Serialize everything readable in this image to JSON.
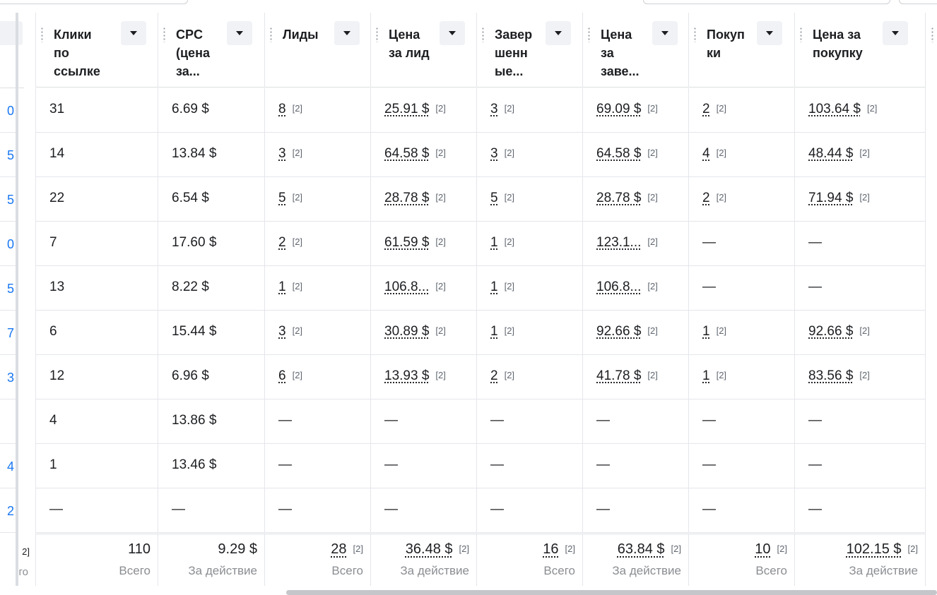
{
  "left_column": {
    "digits": [
      "0",
      "5",
      "5",
      "0",
      "5",
      "7",
      "3",
      "",
      "4",
      "2"
    ],
    "footer_note": "2]",
    "footer_label": "го"
  },
  "columns": [
    {
      "title": "Клики\nпо\nссылке"
    },
    {
      "title": "CPC\n(цена\nза..."
    },
    {
      "title": "Лиды"
    },
    {
      "title": "Цена\nза лид"
    },
    {
      "title": "Завер\nшенн\nые..."
    },
    {
      "title": "Цена\nза\nзаве..."
    },
    {
      "title": "Покуп\nки"
    },
    {
      "title": "Цена за\nпокупку"
    }
  ],
  "rows": [
    [
      {
        "v": "31"
      },
      {
        "v": "6.69 $"
      },
      {
        "v": "8",
        "n": "[2]"
      },
      {
        "v": "25.91 $",
        "n": "[2]"
      },
      {
        "v": "3",
        "n": "[2]"
      },
      {
        "v": "69.09 $",
        "n": "[2]"
      },
      {
        "v": "2",
        "n": "[2]"
      },
      {
        "v": "103.64 $",
        "n": "[2]"
      }
    ],
    [
      {
        "v": "14"
      },
      {
        "v": "13.84 $"
      },
      {
        "v": "3",
        "n": "[2]"
      },
      {
        "v": "64.58 $",
        "n": "[2]"
      },
      {
        "v": "3",
        "n": "[2]"
      },
      {
        "v": "64.58 $",
        "n": "[2]"
      },
      {
        "v": "4",
        "n": "[2]"
      },
      {
        "v": "48.44 $",
        "n": "[2]"
      }
    ],
    [
      {
        "v": "22"
      },
      {
        "v": "6.54 $"
      },
      {
        "v": "5",
        "n": "[2]"
      },
      {
        "v": "28.78 $",
        "n": "[2]"
      },
      {
        "v": "5",
        "n": "[2]"
      },
      {
        "v": "28.78 $",
        "n": "[2]"
      },
      {
        "v": "2",
        "n": "[2]"
      },
      {
        "v": "71.94 $",
        "n": "[2]"
      }
    ],
    [
      {
        "v": "7"
      },
      {
        "v": "17.60 $"
      },
      {
        "v": "2",
        "n": "[2]"
      },
      {
        "v": "61.59 $",
        "n": "[2]"
      },
      {
        "v": "1",
        "n": "[2]"
      },
      {
        "v": "123.1...",
        "n": "[2]"
      },
      {
        "v": "—"
      },
      {
        "v": "—"
      }
    ],
    [
      {
        "v": "13"
      },
      {
        "v": "8.22 $"
      },
      {
        "v": "1",
        "n": "[2]"
      },
      {
        "v": "106.8...",
        "n": "[2]"
      },
      {
        "v": "1",
        "n": "[2]"
      },
      {
        "v": "106.8...",
        "n": "[2]"
      },
      {
        "v": "—"
      },
      {
        "v": "—"
      }
    ],
    [
      {
        "v": "6"
      },
      {
        "v": "15.44 $"
      },
      {
        "v": "3",
        "n": "[2]"
      },
      {
        "v": "30.89 $",
        "n": "[2]"
      },
      {
        "v": "1",
        "n": "[2]"
      },
      {
        "v": "92.66 $",
        "n": "[2]"
      },
      {
        "v": "1",
        "n": "[2]"
      },
      {
        "v": "92.66 $",
        "n": "[2]"
      }
    ],
    [
      {
        "v": "12"
      },
      {
        "v": "6.96 $"
      },
      {
        "v": "6",
        "n": "[2]"
      },
      {
        "v": "13.93 $",
        "n": "[2]"
      },
      {
        "v": "2",
        "n": "[2]"
      },
      {
        "v": "41.78 $",
        "n": "[2]"
      },
      {
        "v": "1",
        "n": "[2]"
      },
      {
        "v": "83.56 $",
        "n": "[2]"
      }
    ],
    [
      {
        "v": "4"
      },
      {
        "v": "13.86 $"
      },
      {
        "v": "—"
      },
      {
        "v": "—"
      },
      {
        "v": "—"
      },
      {
        "v": "—"
      },
      {
        "v": "—"
      },
      {
        "v": "—"
      }
    ],
    [
      {
        "v": "1"
      },
      {
        "v": "13.46 $"
      },
      {
        "v": "—"
      },
      {
        "v": "—"
      },
      {
        "v": "—"
      },
      {
        "v": "—"
      },
      {
        "v": "—"
      },
      {
        "v": "—"
      }
    ],
    [
      {
        "v": "—"
      },
      {
        "v": "—"
      },
      {
        "v": "—"
      },
      {
        "v": "—"
      },
      {
        "v": "—"
      },
      {
        "v": "—"
      },
      {
        "v": "—"
      },
      {
        "v": "—"
      }
    ]
  ],
  "totals": [
    {
      "v": "110",
      "label": "Всего"
    },
    {
      "v": "9.29 $",
      "label": "За действие"
    },
    {
      "v": "28",
      "n": "[2]",
      "label": "Всего"
    },
    {
      "v": "36.48 $",
      "n": "[2]",
      "label": "За действие"
    },
    {
      "v": "16",
      "n": "[2]",
      "label": "Всего"
    },
    {
      "v": "63.84 $",
      "n": "[2]",
      "label": "За действие"
    },
    {
      "v": "10",
      "n": "[2]",
      "label": "Всего"
    },
    {
      "v": "102.15 $",
      "n": "[2]",
      "label": "За действие"
    }
  ]
}
